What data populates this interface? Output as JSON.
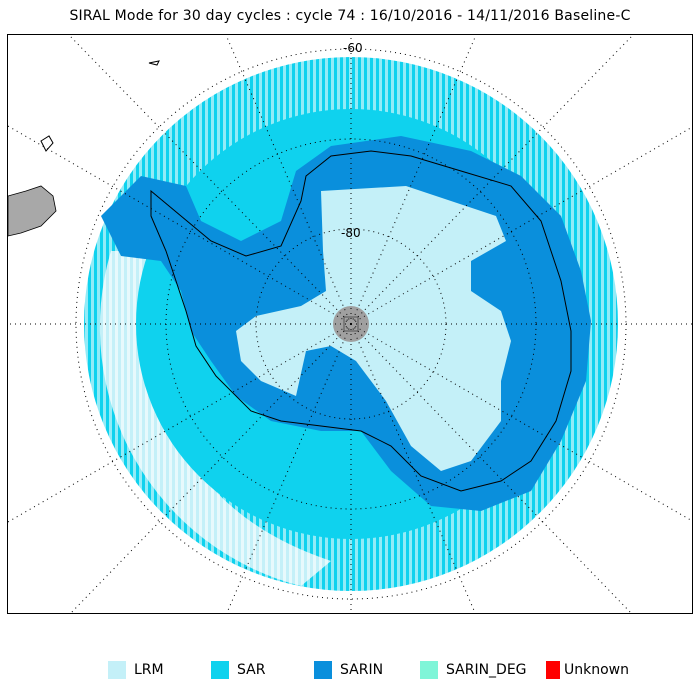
{
  "title": "SIRAL Mode for 30 day cycles : cycle 74 : 16/10/2016 - 14/11/2016 Baseline-C",
  "map": {
    "projection": "south polar stereographic",
    "lat_labels": [
      "-60",
      "-80"
    ],
    "pole_hole_color": "#a0a0a0",
    "land_color": "#a8a8a8",
    "graticule": "dotted"
  },
  "legend": [
    {
      "label": "LRM",
      "color": "#c4f0f8"
    },
    {
      "label": "SAR",
      "color": "#0fd2ee"
    },
    {
      "label": "SARIN",
      "color": "#0a8fdc"
    },
    {
      "label": "SARIN_DEG",
      "color": "#7ff5d8"
    },
    {
      "label": "Unknown",
      "color": "#ff0000"
    }
  ]
}
